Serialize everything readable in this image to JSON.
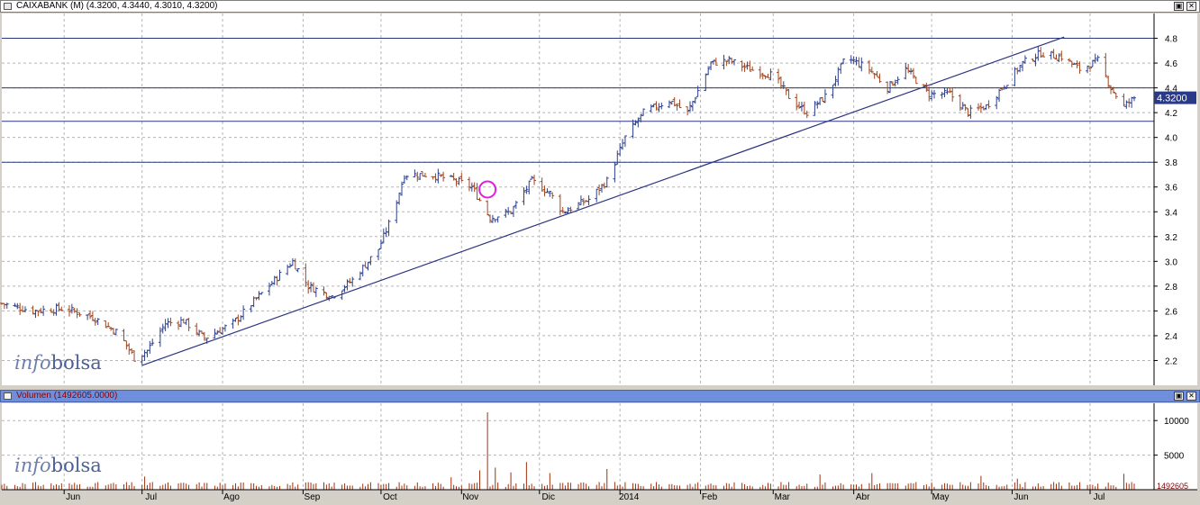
{
  "price_panel": {
    "title": "CAIXABANK (M) (4.3200, 4.3440, 4.3010, 4.3200)",
    "last_price_label": "4.3200"
  },
  "volume_panel": {
    "title": "Volumen (1492605.0000)",
    "last_volume_label": "1492605"
  },
  "logo": {
    "part1": "info",
    "part2": "bolsa"
  },
  "colors": {
    "up_bar": "#2b3f8f",
    "down_bar": "#a0451f",
    "trendline": "#2a3580",
    "level_line": "#2a3580",
    "grid": "#b5b5b5",
    "volume_bar": "#a03010",
    "highlight_circle": "#e020e0",
    "last_price_tag": "#2a3a8a"
  },
  "chart_data": [
    {
      "type": "bar",
      "subtype": "ohlc",
      "title": "CAIXABANK (M) (4.3200, 4.3440, 4.3010, 4.3200)",
      "x_range": [
        "2013-05-08",
        "2014-07-18"
      ],
      "ylim": [
        2.0,
        5.0
      ],
      "y_ticks": [
        2.2,
        2.4,
        2.6,
        2.8,
        3.0,
        3.2,
        3.4,
        3.6,
        3.8,
        4.0,
        4.2,
        4.4,
        4.6,
        4.8
      ],
      "x_tick_labels": [
        "Jun",
        "Jul",
        "Ago",
        "Sep",
        "Oct",
        "Nov",
        "Dic",
        "2014",
        "Feb",
        "Mar",
        "Abr",
        "May",
        "Jun",
        "Jul"
      ],
      "x_tick_dates": [
        "2013-06-01",
        "2013-07-01",
        "2013-08-01",
        "2013-09-01",
        "2013-10-01",
        "2013-11-01",
        "2013-12-01",
        "2014-01-01",
        "2014-02-01",
        "2014-03-01",
        "2014-04-01",
        "2014-05-01",
        "2014-06-01",
        "2014-07-01"
      ],
      "grid": true,
      "close_anchors": [
        [
          "2013-05-08",
          2.66
        ],
        [
          "2013-05-20",
          2.6
        ],
        [
          "2013-06-01",
          2.62
        ],
        [
          "2013-06-12",
          2.55
        ],
        [
          "2013-06-22",
          2.42
        ],
        [
          "2013-06-28",
          2.22
        ],
        [
          "2013-07-03",
          2.28
        ],
        [
          "2013-07-10",
          2.5
        ],
        [
          "2013-07-17",
          2.52
        ],
        [
          "2013-07-25",
          2.38
        ],
        [
          "2013-08-05",
          2.5
        ],
        [
          "2013-08-15",
          2.72
        ],
        [
          "2013-08-28",
          3.0
        ],
        [
          "2013-09-03",
          2.8
        ],
        [
          "2013-09-12",
          2.72
        ],
        [
          "2013-09-20",
          2.85
        ],
        [
          "2013-09-30",
          3.1
        ],
        [
          "2013-10-05",
          3.35
        ],
        [
          "2013-10-10",
          3.7
        ],
        [
          "2013-10-20",
          3.7
        ],
        [
          "2013-10-30",
          3.65
        ],
        [
          "2013-11-05",
          3.6
        ],
        [
          "2013-11-12",
          3.35
        ],
        [
          "2013-11-20",
          3.4
        ],
        [
          "2013-11-28",
          3.65
        ],
        [
          "2013-12-05",
          3.55
        ],
        [
          "2013-12-10",
          3.4
        ],
        [
          "2013-12-20",
          3.5
        ],
        [
          "2013-12-27",
          3.65
        ],
        [
          "2014-01-03",
          4.0
        ],
        [
          "2014-01-10",
          4.2
        ],
        [
          "2014-01-20",
          4.3
        ],
        [
          "2014-01-27",
          4.2
        ],
        [
          "2014-02-05",
          4.6
        ],
        [
          "2014-02-12",
          4.62
        ],
        [
          "2014-02-20",
          4.55
        ],
        [
          "2014-03-01",
          4.5
        ],
        [
          "2014-03-08",
          4.3
        ],
        [
          "2014-03-14",
          4.2
        ],
        [
          "2014-03-22",
          4.35
        ],
        [
          "2014-03-29",
          4.65
        ],
        [
          "2014-04-07",
          4.55
        ],
        [
          "2014-04-14",
          4.4
        ],
        [
          "2014-04-21",
          4.55
        ],
        [
          "2014-04-30",
          4.35
        ],
        [
          "2014-05-08",
          4.35
        ],
        [
          "2014-05-15",
          4.2
        ],
        [
          "2014-05-22",
          4.25
        ],
        [
          "2014-05-30",
          4.45
        ],
        [
          "2014-06-05",
          4.6
        ],
        [
          "2014-06-12",
          4.68
        ],
        [
          "2014-06-20",
          4.65
        ],
        [
          "2014-06-27",
          4.55
        ],
        [
          "2014-07-04",
          4.62
        ],
        [
          "2014-07-09",
          4.4
        ],
        [
          "2014-07-14",
          4.25
        ],
        [
          "2014-07-18",
          4.32
        ]
      ],
      "last_price": 4.32,
      "horizontal_levels": [
        4.8,
        4.4,
        4.13,
        3.8
      ],
      "trendline": {
        "from": [
          "2013-07-01",
          2.16
        ],
        "to": [
          "2014-06-21",
          4.81
        ]
      },
      "highlight": {
        "x": "2013-11-11",
        "y": 3.58
      }
    },
    {
      "type": "bar",
      "title": "Volumen (1492605.0000)",
      "series_unit": "thousands",
      "ylim": [
        0,
        12500
      ],
      "y_ticks": [
        5000,
        10000
      ],
      "x_range": [
        "2013-05-08",
        "2014-07-18"
      ],
      "grid": true,
      "spikes": [
        [
          "2013-11-11",
          11200
        ],
        [
          "2013-11-08",
          2800
        ],
        [
          "2013-11-14",
          3200
        ],
        [
          "2013-11-20",
          2500
        ],
        [
          "2013-11-26",
          4000
        ],
        [
          "2013-12-05",
          2400
        ],
        [
          "2013-12-27",
          3000
        ],
        [
          "2013-10-28",
          1800
        ],
        [
          "2014-01-04",
          2800
        ],
        [
          "2014-03-19",
          2200
        ],
        [
          "2014-04-08",
          2400
        ],
        [
          "2014-05-20",
          2000
        ],
        [
          "2014-07-14",
          2300
        ],
        [
          "2014-06-03",
          1600
        ],
        [
          "2013-07-02",
          1900
        ]
      ],
      "base_level": 800,
      "last_value": 1492605
    }
  ]
}
